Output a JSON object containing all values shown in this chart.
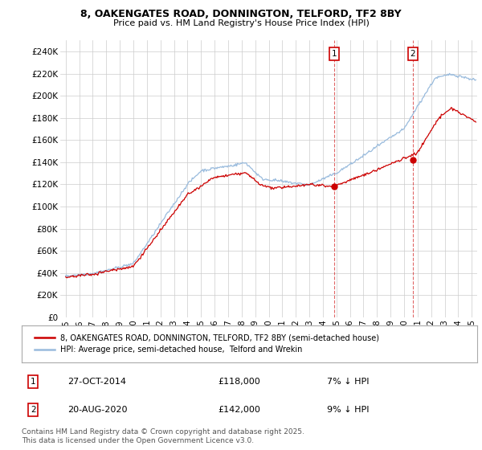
{
  "title": "8, OAKENGATES ROAD, DONNINGTON, TELFORD, TF2 8BY",
  "subtitle": "Price paid vs. HM Land Registry's House Price Index (HPI)",
  "yticks": [
    0,
    20000,
    40000,
    60000,
    80000,
    100000,
    120000,
    140000,
    160000,
    180000,
    200000,
    220000,
    240000
  ],
  "ytick_labels": [
    "£0",
    "£20K",
    "£40K",
    "£60K",
    "£80K",
    "£100K",
    "£120K",
    "£140K",
    "£160K",
    "£180K",
    "£200K",
    "£220K",
    "£240K"
  ],
  "ylim": [
    0,
    250000
  ],
  "xlim_left": 1994.6,
  "xlim_right": 2025.4,
  "legend_label_red": "8, OAKENGATES ROAD, DONNINGTON, TELFORD, TF2 8BY (semi-detached house)",
  "legend_label_blue": "HPI: Average price, semi-detached house,  Telford and Wrekin",
  "marker1_date": "27-OCT-2014",
  "marker1_price": "£118,000",
  "marker1_pct": "7% ↓ HPI",
  "marker2_date": "20-AUG-2020",
  "marker2_price": "£142,000",
  "marker2_pct": "9% ↓ HPI",
  "footer": "Contains HM Land Registry data © Crown copyright and database right 2025.\nThis data is licensed under the Open Government Licence v3.0.",
  "red_color": "#cc0000",
  "blue_color": "#99bbdd",
  "marker_dot_color": "#cc0000",
  "marker1_x": 2014.83,
  "marker2_x": 2020.63,
  "marker1_y": 118000,
  "marker2_y": 142000,
  "background_color": "#ffffff",
  "grid_color": "#cccccc",
  "title_fontsize": 9,
  "subtitle_fontsize": 8
}
